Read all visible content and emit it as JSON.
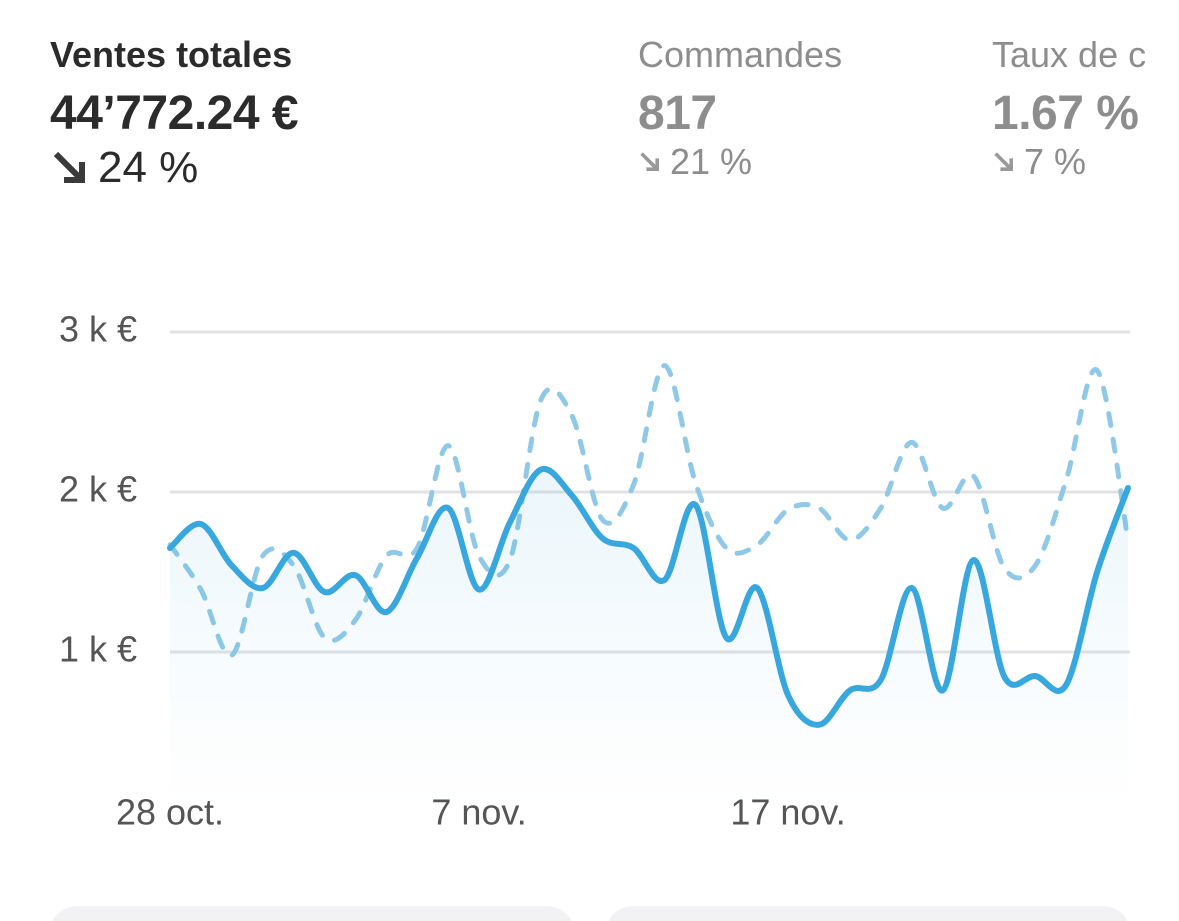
{
  "metrics": [
    {
      "label": "Ventes totales",
      "value": "44’772.24 €",
      "change": "24 %"
    },
    {
      "label": "Commandes",
      "value": "817",
      "change": "21 %"
    },
    {
      "label": "Taux de c",
      "value": "1.67 %",
      "change": "7 %"
    }
  ],
  "chart_data": {
    "type": "line",
    "categories": [
      "28 oct.",
      null,
      null,
      null,
      null,
      null,
      null,
      null,
      null,
      null,
      "7 nov.",
      null,
      null,
      null,
      null,
      null,
      null,
      null,
      null,
      null,
      "17 nov.",
      null,
      null,
      null,
      null,
      null,
      null,
      null,
      null,
      null,
      null,
      null
    ],
    "series": [
      {
        "color": "#38a7dd",
        "style": "solid",
        "area": true,
        "values": [
          1650,
          1800,
          1540,
          1400,
          1620,
          1375,
          1480,
          1250,
          1590,
          1900,
          1390,
          1810,
          2140,
          1980,
          1710,
          1650,
          1450,
          1920,
          1090,
          1400,
          730,
          545,
          760,
          825,
          1400,
          760,
          1575,
          845,
          850,
          795,
          1500,
          2025
        ]
      },
      {
        "color": "#8fc9e7",
        "style": "dashed",
        "values": [
          1670,
          1390,
          980,
          1600,
          1540,
          1090,
          1200,
          1600,
          1650,
          2290,
          1600,
          1575,
          2575,
          2480,
          1825,
          2045,
          2790,
          2060,
          1650,
          1670,
          1890,
          1900,
          1700,
          1900,
          2310,
          1900,
          2100,
          1525,
          1540,
          2075,
          2760,
          1700
        ]
      }
    ],
    "ylim": [
      0,
      3000
    ],
    "yticks": [
      {
        "value": 1000,
        "label": "1 k €"
      },
      {
        "value": 2000,
        "label": "2 k €"
      },
      {
        "value": 3000,
        "label": "3 k €"
      }
    ],
    "grid": true
  }
}
